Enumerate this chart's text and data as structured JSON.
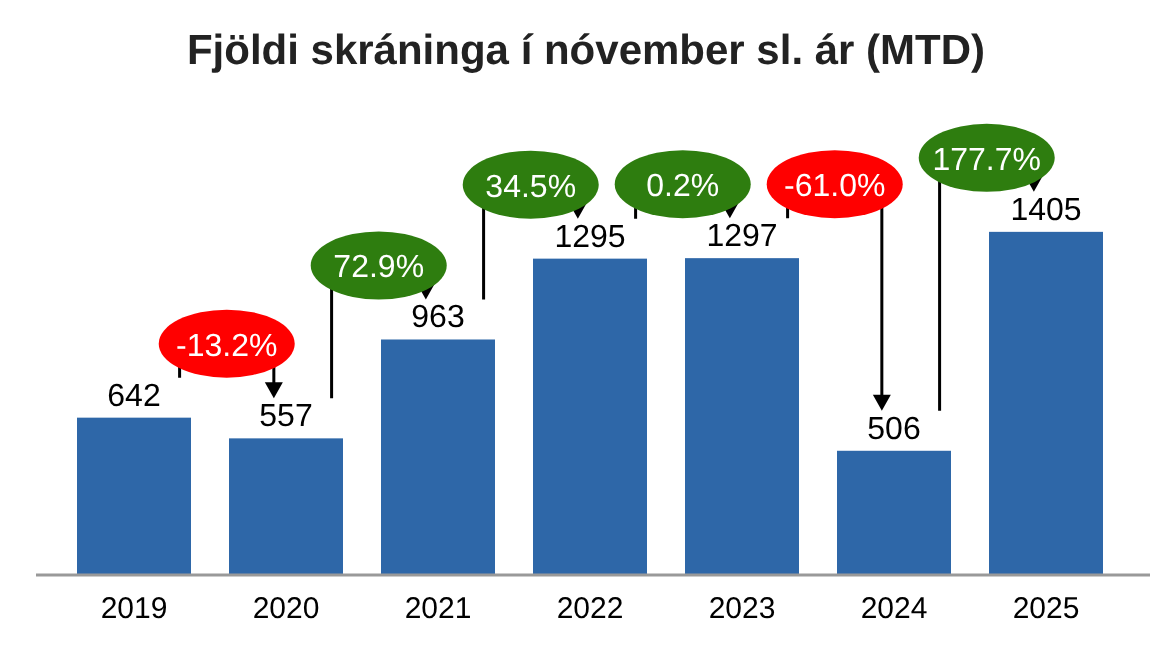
{
  "chart_data": {
    "type": "bar",
    "title": "Fjöldi skráninga í nóvember sl. ár (MTD)",
    "categories": [
      "2019",
      "2020",
      "2021",
      "2022",
      "2023",
      "2024",
      "2025"
    ],
    "values": [
      642,
      557,
      963,
      1295,
      1297,
      506,
      1405
    ],
    "color": "#2e67a8",
    "data_labels": true,
    "annotations": [
      "-13.2%",
      "72.9%",
      "34.5%",
      "0.2%",
      "-61.0%",
      "177.7%"
    ]
  }
}
